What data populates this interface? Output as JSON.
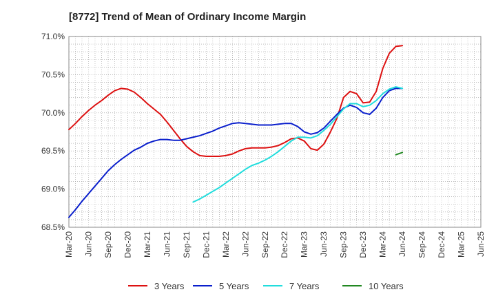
{
  "chart_data": {
    "type": "line",
    "title": "[8772]  Trend of Mean of Ordinary Income Margin",
    "xlabel": "",
    "ylabel": "",
    "ylim": [
      68.5,
      71.0
    ],
    "y_ticks": [
      "68.5%",
      "69.0%",
      "69.5%",
      "70.0%",
      "70.5%",
      "71.0%"
    ],
    "y_tick_values": [
      68.5,
      69.0,
      69.5,
      70.0,
      70.5,
      71.0
    ],
    "x_ticks": [
      "Mar-20",
      "Jun-20",
      "Sep-20",
      "Dec-20",
      "Mar-21",
      "Jun-21",
      "Sep-21",
      "Dec-21",
      "Mar-22",
      "Jun-22",
      "Sep-22",
      "Dec-22",
      "Mar-23",
      "Jun-23",
      "Sep-23",
      "Dec-23",
      "Mar-24",
      "Jun-24",
      "Sep-24",
      "Dec-24",
      "Mar-25",
      "Jun-25"
    ],
    "grid": true,
    "legend_position": "bottom",
    "series": [
      {
        "name": "3 Years",
        "color": "#dd1111",
        "points": [
          [
            0,
            69.78
          ],
          [
            1,
            69.86
          ],
          [
            2,
            69.95
          ],
          [
            3,
            70.03
          ],
          [
            4,
            70.1
          ],
          [
            5,
            70.16
          ],
          [
            6,
            70.23
          ],
          [
            7,
            70.29
          ],
          [
            8,
            70.32
          ],
          [
            9,
            70.31
          ],
          [
            10,
            70.27
          ],
          [
            11,
            70.2
          ],
          [
            12,
            70.12
          ],
          [
            13,
            70.05
          ],
          [
            14,
            69.98
          ],
          [
            15,
            69.88
          ],
          [
            16,
            69.77
          ],
          [
            17,
            69.66
          ],
          [
            18,
            69.56
          ],
          [
            19,
            69.49
          ],
          [
            20,
            69.44
          ],
          [
            21,
            69.43
          ],
          [
            22,
            69.43
          ],
          [
            23,
            69.43
          ],
          [
            24,
            69.44
          ],
          [
            25,
            69.46
          ],
          [
            26,
            69.5
          ],
          [
            27,
            69.53
          ],
          [
            28,
            69.54
          ],
          [
            29,
            69.54
          ],
          [
            30,
            69.54
          ],
          [
            31,
            69.55
          ],
          [
            32,
            69.57
          ],
          [
            33,
            69.61
          ],
          [
            34,
            69.66
          ],
          [
            35,
            69.67
          ],
          [
            36,
            69.63
          ],
          [
            37,
            69.53
          ],
          [
            38,
            69.51
          ],
          [
            39,
            69.59
          ],
          [
            40,
            69.75
          ],
          [
            41,
            69.93
          ],
          [
            42,
            70.2
          ],
          [
            43,
            70.28
          ],
          [
            44,
            70.25
          ],
          [
            45,
            70.13
          ],
          [
            46,
            70.14
          ],
          [
            47,
            70.28
          ],
          [
            48,
            70.58
          ],
          [
            49,
            70.78
          ],
          [
            50,
            70.87
          ],
          [
            51,
            70.88
          ]
        ]
      },
      {
        "name": "5 Years",
        "color": "#0a1fcc",
        "points": [
          [
            0,
            68.63
          ],
          [
            1,
            68.73
          ],
          [
            2,
            68.84
          ],
          [
            3,
            68.94
          ],
          [
            4,
            69.04
          ],
          [
            5,
            69.14
          ],
          [
            6,
            69.24
          ],
          [
            7,
            69.32
          ],
          [
            8,
            69.39
          ],
          [
            9,
            69.45
          ],
          [
            10,
            69.51
          ],
          [
            11,
            69.55
          ],
          [
            12,
            69.6
          ],
          [
            13,
            69.63
          ],
          [
            14,
            69.65
          ],
          [
            15,
            69.65
          ],
          [
            16,
            69.64
          ],
          [
            17,
            69.64
          ],
          [
            18,
            69.66
          ],
          [
            19,
            69.68
          ],
          [
            20,
            69.7
          ],
          [
            21,
            69.73
          ],
          [
            22,
            69.76
          ],
          [
            23,
            69.8
          ],
          [
            24,
            69.83
          ],
          [
            25,
            69.86
          ],
          [
            26,
            69.87
          ],
          [
            27,
            69.86
          ],
          [
            28,
            69.85
          ],
          [
            29,
            69.84
          ],
          [
            30,
            69.84
          ],
          [
            31,
            69.84
          ],
          [
            32,
            69.85
          ],
          [
            33,
            69.86
          ],
          [
            34,
            69.86
          ],
          [
            35,
            69.82
          ],
          [
            36,
            69.75
          ],
          [
            37,
            69.72
          ],
          [
            38,
            69.74
          ],
          [
            39,
            69.8
          ],
          [
            40,
            69.89
          ],
          [
            41,
            69.98
          ],
          [
            42,
            70.06
          ],
          [
            43,
            70.1
          ],
          [
            44,
            70.07
          ],
          [
            45,
            70.0
          ],
          [
            46,
            69.98
          ],
          [
            47,
            70.06
          ],
          [
            48,
            70.2
          ],
          [
            49,
            70.29
          ],
          [
            50,
            70.32
          ],
          [
            51,
            70.32
          ]
        ]
      },
      {
        "name": "7 Years",
        "color": "#22dddd",
        "points": [
          [
            19,
            68.83
          ],
          [
            20,
            68.87
          ],
          [
            21,
            68.92
          ],
          [
            22,
            68.97
          ],
          [
            23,
            69.02
          ],
          [
            24,
            69.08
          ],
          [
            25,
            69.14
          ],
          [
            26,
            69.2
          ],
          [
            27,
            69.26
          ],
          [
            28,
            69.31
          ],
          [
            29,
            69.34
          ],
          [
            30,
            69.38
          ],
          [
            31,
            69.43
          ],
          [
            32,
            69.49
          ],
          [
            33,
            69.56
          ],
          [
            34,
            69.63
          ],
          [
            35,
            69.68
          ],
          [
            36,
            69.68
          ],
          [
            37,
            69.67
          ],
          [
            38,
            69.7
          ],
          [
            39,
            69.77
          ],
          [
            40,
            69.85
          ],
          [
            41,
            69.95
          ],
          [
            42,
            70.05
          ],
          [
            43,
            70.12
          ],
          [
            44,
            70.12
          ],
          [
            45,
            70.08
          ],
          [
            46,
            70.1
          ],
          [
            47,
            70.16
          ],
          [
            48,
            70.25
          ],
          [
            49,
            70.31
          ],
          [
            50,
            70.34
          ],
          [
            51,
            70.32
          ]
        ]
      },
      {
        "name": "10 Years",
        "color": "#228822",
        "points": [
          [
            50,
            69.45
          ],
          [
            51,
            69.48
          ]
        ]
      }
    ]
  }
}
